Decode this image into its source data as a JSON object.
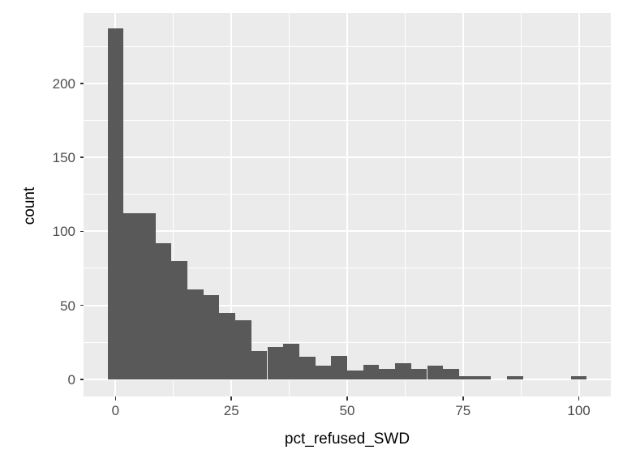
{
  "chart_data": {
    "type": "histogram",
    "title": "",
    "xlabel": "pct_refused_SWD",
    "ylabel": "count",
    "bin_width": 3.448,
    "bin_centers": [
      0,
      3.45,
      6.9,
      10.34,
      13.79,
      17.24,
      20.69,
      24.14,
      27.59,
      31.03,
      34.48,
      37.93,
      41.38,
      44.83,
      48.28,
      51.72,
      55.17,
      58.62,
      62.07,
      65.52,
      68.97,
      72.41,
      75.86,
      79.31,
      82.76,
      86.21,
      89.66,
      93.1,
      96.55,
      100
    ],
    "counts": [
      237,
      112,
      112,
      92,
      80,
      61,
      57,
      45,
      40,
      19,
      22,
      24,
      15,
      9,
      16,
      6,
      10,
      7,
      11,
      7,
      9,
      7,
      2,
      2,
      0,
      2,
      0,
      0,
      0,
      2
    ],
    "x_ticks": [
      0,
      25,
      50,
      75,
      100
    ],
    "y_ticks": [
      0,
      50,
      100,
      150,
      200
    ],
    "x_minor_gridlines": [
      12.5,
      37.5,
      62.5,
      87.5
    ],
    "y_minor_gridlines": [
      25,
      75,
      125,
      175,
      225
    ],
    "x_range": [
      -6.9,
      106.9
    ],
    "y_range": [
      -11.6,
      247.6
    ],
    "grid": true,
    "legend": "none",
    "colors": {
      "bar_fill": "#595959",
      "panel_background": "#EBEBEB",
      "gridline": "#FFFFFF",
      "tick_text": "#4D4D4D",
      "tick_mark": "#333333",
      "axis_title_text": "#000000",
      "figure_background": "#FFFFFF"
    }
  }
}
